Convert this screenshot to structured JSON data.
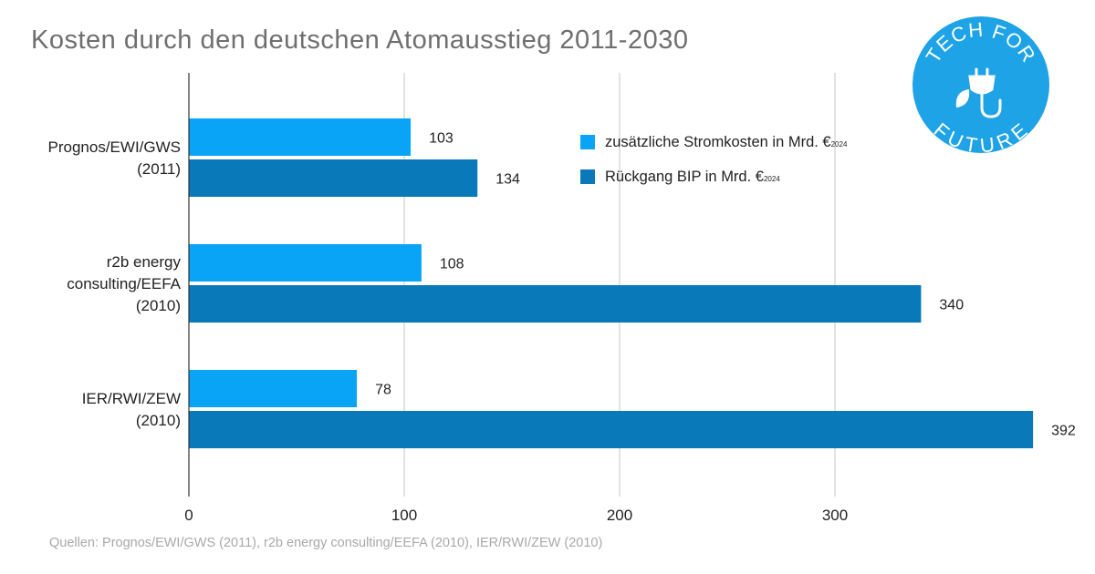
{
  "title": "Kosten durch den deutschen Atomausstieg 2011-2030",
  "source_text": "Quellen:  Prognos/EWI/GWS (2011), r2b energy consulting/EEFA (2010), IER/RWI/ZEW (2010)",
  "logo": {
    "text_top": "TECH FOR",
    "text_bottom": "FUTURE",
    "icon": "plug-leaf-icon",
    "color": "#1ea3e6"
  },
  "legend": [
    {
      "label": "zusätzliche Stromkosten in Mrd. €",
      "sub": "2024",
      "color": "#0aa4f7"
    },
    {
      "label": "Rückgang BIP in Mrd. €",
      "sub": "2024",
      "color": "#0979b9"
    }
  ],
  "chart_data": {
    "type": "bar",
    "orientation": "horizontal",
    "categories": [
      [
        "Prognos/EWI/GWS",
        "(2011)"
      ],
      [
        "r2b energy",
        "consulting/EEFA",
        "(2010)"
      ],
      [
        "IER/RWI/ZEW",
        "(2010)"
      ]
    ],
    "series": [
      {
        "name": "zusätzliche Stromkosten in Mrd. €2024",
        "color": "#0aa4f7",
        "values": [
          103,
          108,
          78
        ]
      },
      {
        "name": "Rückgang BIP in Mrd. €2024",
        "color": "#0979b9",
        "values": [
          134,
          340,
          392
        ]
      }
    ],
    "xticks": [
      0,
      100,
      200,
      300
    ],
    "xlim": [
      0,
      392
    ],
    "grid": "vertical",
    "legend_position": "top-right"
  }
}
